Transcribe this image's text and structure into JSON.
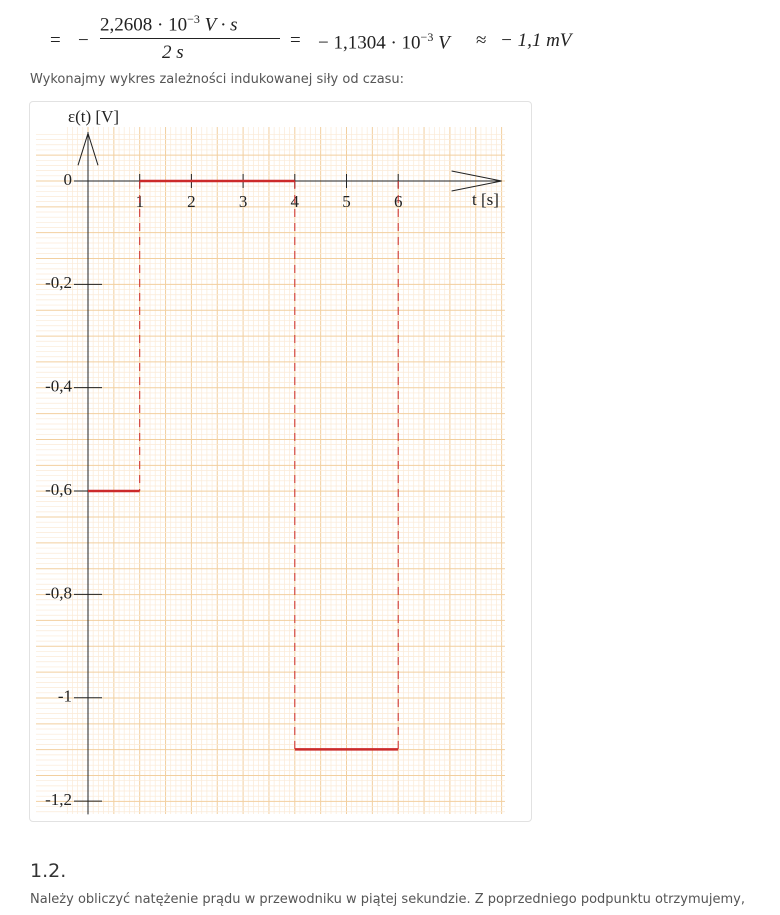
{
  "formula": {
    "lead": "=",
    "sign": "−",
    "numerator": "2,2608 · 10",
    "numerator_exp": "−3",
    "numerator_unit": "V · s",
    "denominator": "2 s",
    "equals": "=",
    "result": "− 1,1304 · 10",
    "result_exp": "−3",
    "result_unit": "V",
    "approx": "≈",
    "rounded": "− 1,1 mV"
  },
  "intro": "Wykonajmy wykres zależności indukowanej siły od czasu:",
  "chart_data": {
    "type": "step",
    "y_label": "ε(t) [V]",
    "x_label": "t [s]",
    "x": [
      0,
      1,
      1,
      4,
      4,
      6
    ],
    "values": [
      -0.6,
      -0.6,
      0,
      0,
      -1.1,
      -1.1
    ],
    "color": "#cc2a2a",
    "xlim": [
      0,
      8
    ],
    "ylim": [
      -1.22,
      0.1
    ],
    "xticks": [
      1,
      2,
      3,
      4,
      5,
      6
    ],
    "yticks": [
      0,
      {
        "value": -0.2,
        "label": "-0,2"
      },
      {
        "value": -0.4,
        "label": "-0,4"
      },
      {
        "value": -0.6,
        "label": "-0,6"
      },
      {
        "value": -0.8,
        "label": "-0,8"
      },
      -1,
      {
        "value": -1.2,
        "label": "-1,2"
      }
    ],
    "grid": true
  },
  "section": "1.2.",
  "paragraph": "Należy obliczyć natężenie prądu w przewodniku w piątej sekundzie. Z poprzedniego podpunktu otrzymujemy,"
}
